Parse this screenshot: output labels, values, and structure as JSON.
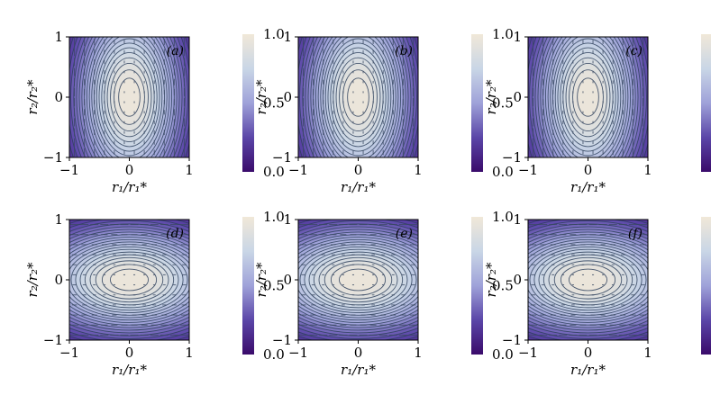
{
  "chart_data": {
    "type": "heatmap",
    "colormap": {
      "name": "twilight-like (indigo to cream)",
      "stops": [
        {
          "v": 0.0,
          "color": "#3a0b6b"
        },
        {
          "v": 0.25,
          "color": "#5b46a8"
        },
        {
          "v": 0.5,
          "color": "#9fa2d9"
        },
        {
          "v": 0.75,
          "color": "#c9d6e6"
        },
        {
          "v": 1.0,
          "color": "#f1e8d8"
        }
      ]
    },
    "contour_color": "#2d3f5c",
    "colorbar": {
      "ticks": [
        "0.0",
        "0.5",
        "1.0"
      ],
      "range": [
        0,
        1
      ]
    },
    "x_ticks": [
      "−1",
      "0",
      "1"
    ],
    "y_ticks": [
      "−1",
      "0",
      "1"
    ],
    "xlim": [
      -1,
      1
    ],
    "ylim": [
      -1,
      1
    ],
    "xlabel": "r₁/r₁*",
    "ylabel": "r₂/r₂*",
    "panels": [
      {
        "label": "(a)",
        "orientation": "vertical",
        "sx": 0.9,
        "sy": 1.6
      },
      {
        "label": "(b)",
        "orientation": "vertical",
        "sx": 0.9,
        "sy": 1.6
      },
      {
        "label": "(c)",
        "orientation": "vertical",
        "sx": 0.9,
        "sy": 1.6
      },
      {
        "label": "(d)",
        "orientation": "horizontal",
        "sx": 1.6,
        "sy": 0.9
      },
      {
        "label": "(e)",
        "orientation": "horizontal",
        "sx": 1.6,
        "sy": 0.9
      },
      {
        "label": "(f)",
        "orientation": "horizontal",
        "sx": 1.6,
        "sy": 0.9
      }
    ]
  }
}
